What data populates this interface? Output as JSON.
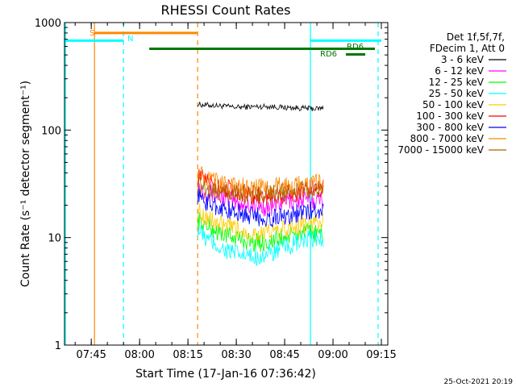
{
  "chart_data": {
    "type": "line",
    "title": "RHESSI Count Rates",
    "xlabel": "Start Time (17-Jan-16 07:36:42)",
    "ylabel": "Count Rate (s⁻¹ detector segment⁻¹)",
    "y_scale": "log",
    "ylim": [
      1,
      1000
    ],
    "xlim": [
      "07:36:42",
      "09:17:00"
    ],
    "x_ticks": [
      "07:45",
      "08:00",
      "08:15",
      "08:30",
      "08:45",
      "09:00",
      "09:15"
    ],
    "y_ticks": [
      "1",
      "10",
      "100",
      "1000"
    ],
    "grid": false,
    "legend_position": "right",
    "legend_header": [
      "Det 1f,5f,7f,",
      "FDecim 1, Att 0"
    ],
    "series": [
      {
        "name": "3 - 6 keV",
        "color": "#000000",
        "x": [
          "08:18",
          "08:19",
          "08:25",
          "08:30",
          "08:35",
          "08:40",
          "08:45",
          "08:50",
          "08:55",
          "08:57"
        ],
        "values": [
          175,
          172,
          168,
          163,
          165,
          166,
          162,
          160,
          158,
          160
        ]
      },
      {
        "name": "6 - 12 keV",
        "color": "#ff00ff",
        "x": [
          "08:18",
          "08:20",
          "08:25",
          "08:30",
          "08:35",
          "08:40",
          "08:45",
          "08:50",
          "08:55",
          "08:57"
        ],
        "values": [
          30,
          27,
          24,
          21,
          20,
          19,
          22,
          22,
          22,
          23
        ]
      },
      {
        "name": "12 - 25 keV",
        "color": "#00ff00",
        "x": [
          "08:18",
          "08:20",
          "08:25",
          "08:30",
          "08:35",
          "08:40",
          "08:45",
          "08:50",
          "08:55",
          "08:57"
        ],
        "values": [
          15,
          13,
          11,
          10,
          9,
          9,
          10,
          11,
          11,
          11
        ]
      },
      {
        "name": "25 - 50 keV",
        "color": "#00ffff",
        "x": [
          "08:18",
          "08:20",
          "08:25",
          "08:30",
          "08:35",
          "08:40",
          "08:45",
          "08:50",
          "08:55",
          "08:57"
        ],
        "values": [
          12,
          10,
          8,
          7,
          6.5,
          7,
          8,
          9,
          10,
          10
        ]
      },
      {
        "name": "50 - 100 keV",
        "color": "#ffcc00",
        "x": [
          "08:18",
          "08:20",
          "08:25",
          "08:30",
          "08:35",
          "08:40",
          "08:45",
          "08:50",
          "08:55",
          "08:57"
        ],
        "values": [
          18,
          16,
          13,
          12,
          11,
          11,
          12,
          13,
          14,
          14
        ]
      },
      {
        "name": "100 - 300 keV",
        "color": "#ff0000",
        "x": [
          "08:18",
          "08:20",
          "08:25",
          "08:30",
          "08:35",
          "08:40",
          "08:45",
          "08:50",
          "08:55",
          "08:57"
        ],
        "values": [
          38,
          34,
          30,
          27,
          25,
          24,
          25,
          27,
          29,
          30
        ]
      },
      {
        "name": "300 - 800 keV",
        "color": "#0000ff",
        "x": [
          "08:18",
          "08:20",
          "08:25",
          "08:30",
          "08:35",
          "08:40",
          "08:45",
          "08:50",
          "08:55",
          "08:57"
        ],
        "values": [
          25,
          22,
          19,
          17,
          16,
          15,
          16,
          17,
          18,
          18
        ]
      },
      {
        "name": "800 - 7000 keV",
        "color": "#ff8800",
        "x": [
          "08:18",
          "08:20",
          "08:25",
          "08:30",
          "08:35",
          "08:40",
          "08:45",
          "08:50",
          "08:55",
          "08:57"
        ],
        "values": [
          40,
          36,
          32,
          30,
          29,
          29,
          30,
          31,
          32,
          32
        ]
      },
      {
        "name": "7000 - 15000 keV",
        "color": "#b06000",
        "x": [
          "08:18",
          "08:20",
          "08:25",
          "08:30",
          "08:35",
          "08:40",
          "08:45",
          "08:50",
          "08:55",
          "08:57"
        ],
        "values": [
          32,
          29,
          27,
          26,
          25,
          25,
          27,
          28,
          29,
          30
        ]
      }
    ],
    "flag_bars": [
      {
        "label": "S",
        "color": "#ff8800",
        "start": "07:46:00",
        "end": "08:18:00",
        "level": 800
      },
      {
        "label": "N",
        "color": "#00ffff",
        "start": "07:36:42",
        "end": "07:55:00",
        "level": 680
      },
      {
        "label": "",
        "color": "#00ffff",
        "start": "08:53:00",
        "end": "09:15:00",
        "level": 680
      },
      {
        "label": "RD6",
        "color": "#007700",
        "start": "08:03:00",
        "end": "09:13:00",
        "level": 570
      },
      {
        "label": "RD6",
        "color": "#007700",
        "start": "09:04:00",
        "end": "09:10:00",
        "level": 505
      }
    ],
    "markers": [
      {
        "time": "07:37:00",
        "color": "#00ffff",
        "style": "solid"
      },
      {
        "time": "07:46:00",
        "color": "#ff8800",
        "style": "solid"
      },
      {
        "time": "07:55:00",
        "color": "#00ffff",
        "style": "dashed"
      },
      {
        "time": "08:18:00",
        "color": "#ff8800",
        "style": "dashed"
      },
      {
        "time": "08:53:00",
        "color": "#00ffff",
        "style": "solid"
      },
      {
        "time": "09:14:00",
        "color": "#00ffff",
        "style": "dashed"
      }
    ],
    "footer_stamp": "25-Oct-2021 20:19"
  }
}
